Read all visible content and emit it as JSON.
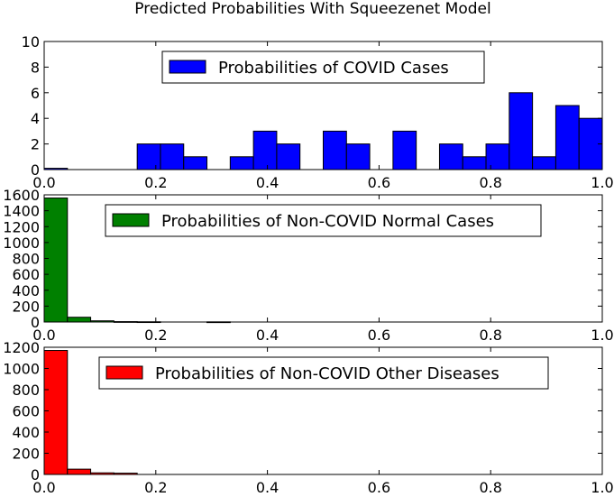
{
  "figure": {
    "title": "Predicted Probabilities With Squeezenet Model"
  },
  "chart_data": [
    {
      "type": "bar",
      "subtype": "histogram",
      "bin_edges": [
        0.0,
        0.04167,
        0.08333,
        0.125,
        0.16667,
        0.20833,
        0.25,
        0.29167,
        0.33333,
        0.375,
        0.41667,
        0.45833,
        0.5,
        0.54167,
        0.58333,
        0.625,
        0.66667,
        0.70833,
        0.75,
        0.79167,
        0.83333,
        0.875,
        0.91667,
        0.95833,
        1.0
      ],
      "series": [
        {
          "name": "Probabilities of COVID Cases",
          "color": "#0000ff",
          "values": [
            0.1,
            0,
            0,
            0,
            2,
            2,
            1,
            0,
            1,
            3,
            2,
            0,
            3,
            2,
            0,
            3,
            0,
            2,
            1,
            2,
            6,
            1,
            5,
            4
          ]
        }
      ],
      "xlim": [
        0.0,
        1.0
      ],
      "ylim": [
        0,
        10
      ],
      "xticks": [
        "0.0",
        "0.2",
        "0.4",
        "0.6",
        "0.8",
        "1.0"
      ],
      "yticks": [
        "0",
        "2",
        "4",
        "6",
        "8",
        "10"
      ],
      "legend": "upper-center",
      "grid": false
    },
    {
      "type": "bar",
      "subtype": "histogram",
      "bin_edges": [
        0.0,
        0.04167,
        0.08333,
        0.125,
        0.16667,
        0.20833,
        0.25,
        0.29167,
        0.33333
      ],
      "series": [
        {
          "name": "Probabilities of Non-COVID Normal Cases",
          "color": "#008000",
          "values": [
            1560,
            60,
            15,
            5,
            3,
            0,
            0,
            2
          ]
        }
      ],
      "xlim": [
        0.0,
        1.0
      ],
      "ylim": [
        0,
        1600
      ],
      "xticks": [
        "0.0",
        "0.2",
        "0.4",
        "0.6",
        "0.8",
        "1.0"
      ],
      "yticks": [
        "0",
        "200",
        "400",
        "600",
        "800",
        "1000",
        "1200",
        "1400",
        "1600"
      ],
      "legend": "upper-center",
      "grid": false
    },
    {
      "type": "bar",
      "subtype": "histogram",
      "bin_edges": [
        0.0,
        0.04167,
        0.08333,
        0.125,
        0.16667
      ],
      "series": [
        {
          "name": "Probabilities of Non-COVID Other Diseases",
          "color": "#ff0000",
          "values": [
            1170,
            50,
            15,
            12
          ]
        }
      ],
      "xlim": [
        0.0,
        1.0
      ],
      "ylim": [
        0,
        1200
      ],
      "xticks": [
        "0.0",
        "0.2",
        "0.4",
        "0.6",
        "0.8",
        "1.0"
      ],
      "yticks": [
        "0",
        "200",
        "400",
        "600",
        "800",
        "1000",
        "1200"
      ],
      "legend": "upper-center",
      "grid": false
    }
  ]
}
